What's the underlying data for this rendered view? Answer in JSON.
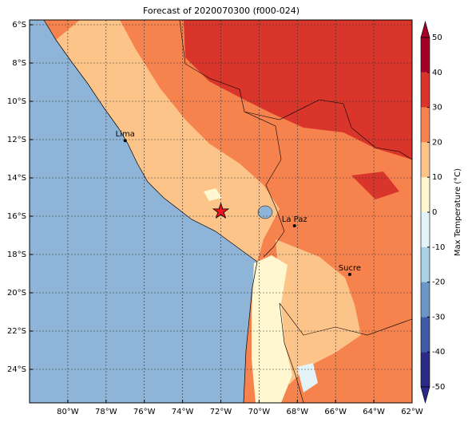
{
  "map": {
    "title": "Forecast of 2020070300 (f000-024)",
    "xlim": [
      -82,
      -62
    ],
    "ylim": [
      -25.75,
      -5.75
    ],
    "xticks": [
      {
        "value": -80,
        "label": "80°W"
      },
      {
        "value": -78,
        "label": "78°W"
      },
      {
        "value": -76,
        "label": "76°W"
      },
      {
        "value": -74,
        "label": "74°W"
      },
      {
        "value": -72,
        "label": "72°W"
      },
      {
        "value": -70,
        "label": "70°W"
      },
      {
        "value": -68,
        "label": "68°W"
      },
      {
        "value": -66,
        "label": "66°W"
      },
      {
        "value": -64,
        "label": "64°W"
      },
      {
        "value": -62,
        "label": "62°W"
      }
    ],
    "yticks": [
      {
        "value": -6,
        "label": "6°S"
      },
      {
        "value": -8,
        "label": "8°S"
      },
      {
        "value": -10,
        "label": "10°S"
      },
      {
        "value": -12,
        "label": "12°S"
      },
      {
        "value": -14,
        "label": "14°S"
      },
      {
        "value": -16,
        "label": "16°S"
      },
      {
        "value": -18,
        "label": "18°S"
      },
      {
        "value": -20,
        "label": "20°S"
      },
      {
        "value": -22,
        "label": "22°S"
      },
      {
        "value": -24,
        "label": "24°S"
      }
    ],
    "grid": true,
    "cities": [
      {
        "name": "Lima",
        "lon": -77.0,
        "lat": -12.05
      },
      {
        "name": "La Paz",
        "lon": -68.15,
        "lat": -16.5
      },
      {
        "name": "Sucre",
        "lon": -65.26,
        "lat": -19.04
      }
    ],
    "marker": {
      "lon": -72.0,
      "lat": -15.75,
      "color": "#e8161b"
    },
    "colorbar": {
      "label": "Max Temperature (°C)",
      "lim": [
        -50,
        50
      ],
      "ticks": [
        -50,
        -40,
        -30,
        -20,
        -10,
        0,
        10,
        20,
        30,
        40,
        50
      ],
      "colors": [
        "#2b2a86",
        "#3f5aa5",
        "#6b97c8",
        "#a9d0e6",
        "#e3f3f8",
        "#fef7cf",
        "#fdc48a",
        "#f6834e",
        "#d9352a",
        "#a50026"
      ]
    }
  }
}
